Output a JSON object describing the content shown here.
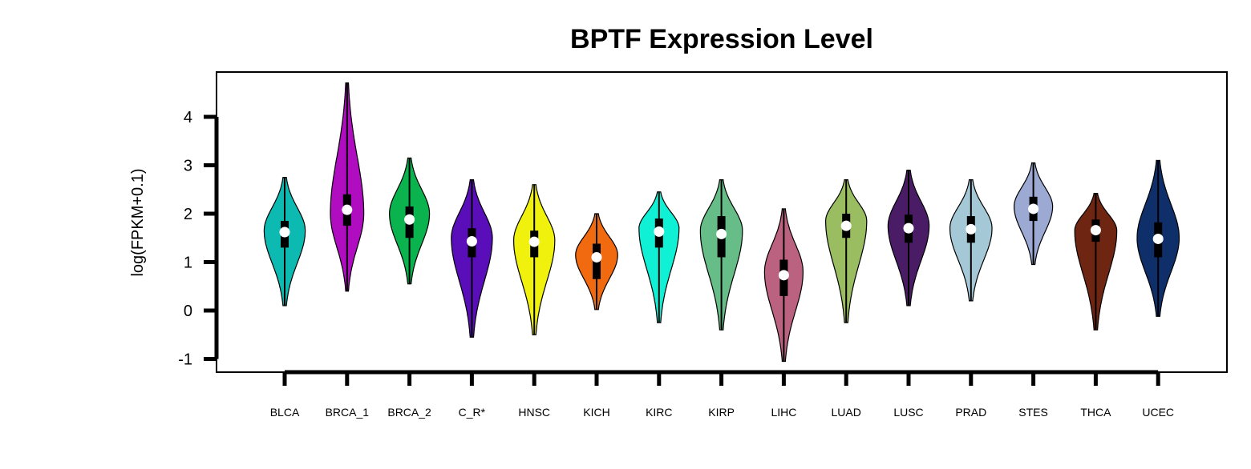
{
  "chart_data": {
    "type": "violin",
    "title": "BPTF Expression Level",
    "xlabel": "",
    "ylabel": "log(FPKM+0.1)",
    "ylim": [
      -1.3,
      4.9
    ],
    "yticks": [
      -1,
      0,
      1,
      2,
      3,
      4
    ],
    "grid": false,
    "legend": "none",
    "categories": [
      "BLCA",
      "BRCA_1",
      "BRCA_2",
      "C_R*",
      "HNSC",
      "KICH",
      "KIRC",
      "KIRP",
      "LIHC",
      "LUAD",
      "LUSC",
      "PRAD",
      "STES",
      "THCA",
      "UCEC"
    ],
    "series": [
      {
        "category": "BLCA",
        "color": "#0DBAB1",
        "min": 0.1,
        "max": 2.75,
        "q1": 1.3,
        "median": 1.62,
        "q3": 1.85,
        "peak": 1.65,
        "halfwidth": 0.8
      },
      {
        "category": "BRCA_1",
        "color": "#B00DC0",
        "min": 0.4,
        "max": 4.7,
        "q1": 1.75,
        "median": 2.08,
        "q3": 2.4,
        "peak": 2.0,
        "halfwidth": 0.65
      },
      {
        "category": "BRCA_2",
        "color": "#0BB34F",
        "min": 0.55,
        "max": 3.15,
        "q1": 1.5,
        "median": 1.88,
        "q3": 2.15,
        "peak": 2.0,
        "halfwidth": 0.78
      },
      {
        "category": "C_R*",
        "color": "#5A0EB9",
        "min": -0.55,
        "max": 2.7,
        "q1": 1.1,
        "median": 1.43,
        "q3": 1.7,
        "peak": 1.5,
        "halfwidth": 0.8
      },
      {
        "category": "HNSC",
        "color": "#F1F10E",
        "min": -0.5,
        "max": 2.6,
        "q1": 1.1,
        "median": 1.42,
        "q3": 1.65,
        "peak": 1.45,
        "halfwidth": 0.8
      },
      {
        "category": "KICH",
        "color": "#F26A10",
        "min": 0.02,
        "max": 2.0,
        "q1": 0.65,
        "median": 1.1,
        "q3": 1.38,
        "peak": 1.15,
        "halfwidth": 0.82
      },
      {
        "category": "KIRC",
        "color": "#0FF0D5",
        "min": -0.25,
        "max": 2.45,
        "q1": 1.3,
        "median": 1.63,
        "q3": 1.9,
        "peak": 1.7,
        "halfwidth": 0.78
      },
      {
        "category": "KIRP",
        "color": "#66BD87",
        "min": -0.4,
        "max": 2.7,
        "q1": 1.1,
        "median": 1.58,
        "q3": 1.95,
        "peak": 1.65,
        "halfwidth": 0.82
      },
      {
        "category": "LIHC",
        "color": "#BB6281",
        "min": -1.05,
        "max": 2.1,
        "q1": 0.3,
        "median": 0.73,
        "q3": 1.05,
        "peak": 0.8,
        "halfwidth": 0.75
      },
      {
        "category": "LUAD",
        "color": "#9ABD61",
        "min": -0.25,
        "max": 2.7,
        "q1": 1.5,
        "median": 1.75,
        "q3": 2.0,
        "peak": 1.85,
        "halfwidth": 0.8
      },
      {
        "category": "LUSC",
        "color": "#4A1C66",
        "min": 0.1,
        "max": 2.9,
        "q1": 1.4,
        "median": 1.7,
        "q3": 1.98,
        "peak": 1.75,
        "halfwidth": 0.8
      },
      {
        "category": "PRAD",
        "color": "#A5C8D7",
        "min": 0.2,
        "max": 2.7,
        "q1": 1.4,
        "median": 1.68,
        "q3": 1.95,
        "peak": 1.7,
        "halfwidth": 0.82
      },
      {
        "category": "STES",
        "color": "#9BA9D3",
        "min": 0.95,
        "max": 3.05,
        "q1": 1.85,
        "median": 2.1,
        "q3": 2.35,
        "peak": 2.15,
        "halfwidth": 0.75
      },
      {
        "category": "THCA",
        "color": "#6E2511",
        "min": -0.4,
        "max": 2.42,
        "q1": 1.42,
        "median": 1.66,
        "q3": 1.88,
        "peak": 1.65,
        "halfwidth": 0.82
      },
      {
        "category": "UCEC",
        "color": "#0E2F69",
        "min": -0.12,
        "max": 3.1,
        "q1": 1.1,
        "median": 1.48,
        "q3": 1.82,
        "peak": 1.5,
        "halfwidth": 0.82
      }
    ]
  }
}
